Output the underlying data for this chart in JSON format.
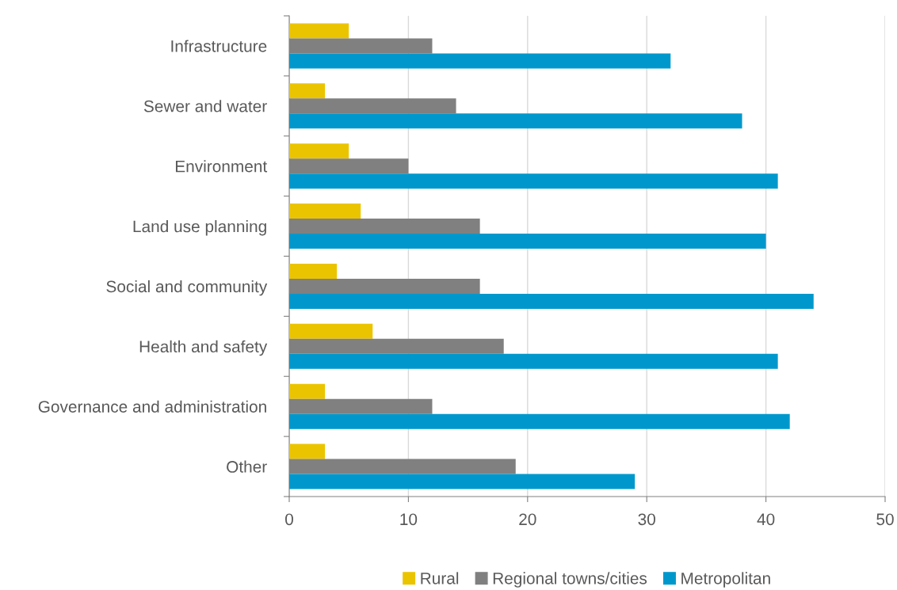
{
  "chart_data": {
    "type": "bar",
    "orientation": "horizontal",
    "categories": [
      "Infrastructure",
      "Sewer and water",
      "Environment",
      "Land use planning",
      "Social and community",
      "Health and safety",
      "Governance and administration",
      "Other"
    ],
    "series": [
      {
        "name": "Rural",
        "color": "#ebc400",
        "values": [
          5,
          3,
          5,
          6,
          4,
          7,
          3,
          3
        ]
      },
      {
        "name": "Regional towns/cities",
        "color": "#808080",
        "values": [
          12,
          14,
          10,
          16,
          16,
          18,
          12,
          19
        ]
      },
      {
        "name": "Metropolitan",
        "color": "#0098cc",
        "values": [
          32,
          38,
          41,
          40,
          44,
          41,
          42,
          29
        ]
      }
    ],
    "xlim": [
      0,
      50
    ],
    "xticks": [
      0,
      10,
      20,
      30,
      40,
      50
    ],
    "grid": "x",
    "legend": "bottom"
  }
}
